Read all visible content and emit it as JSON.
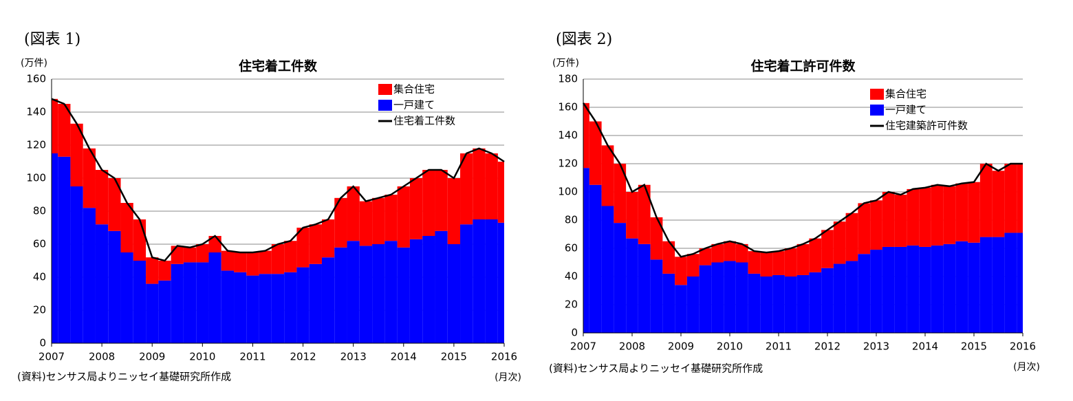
{
  "chart_data": [
    {
      "type": "bar",
      "stacked": true,
      "figure_label": "(図表 1)",
      "title": "住宅着工件数",
      "y_unit": "(万件)",
      "x_unit": "(月次)",
      "note": "(資料)センサス局よりニッセイ基礎研究所作成",
      "categories": [
        "2007",
        null,
        null,
        null,
        "2008",
        null,
        null,
        null,
        "2009",
        null,
        null,
        null,
        "2010",
        null,
        null,
        null,
        "2011",
        null,
        null,
        null,
        "2012",
        null,
        null,
        null,
        "2013",
        null,
        null,
        null,
        "2014",
        null,
        null,
        null,
        "2015",
        null,
        null,
        null,
        "2016"
      ],
      "series": [
        {
          "name": "集合住宅",
          "color": "#ff0000",
          "values": [
            33,
            32,
            38,
            36,
            33,
            32,
            30,
            25,
            16,
            12,
            11,
            9,
            11,
            10,
            12,
            12,
            14,
            14,
            18,
            19,
            24,
            24,
            23,
            30,
            33,
            27,
            28,
            28,
            37,
            37,
            40,
            37,
            40,
            43,
            43,
            40,
            37
          ]
        },
        {
          "name": "一戸建て",
          "color": "#0000ff",
          "values": [
            115,
            113,
            95,
            82,
            72,
            68,
            55,
            50,
            36,
            38,
            48,
            49,
            49,
            55,
            44,
            43,
            41,
            42,
            42,
            43,
            46,
            48,
            52,
            58,
            62,
            59,
            60,
            62,
            58,
            63,
            65,
            68,
            60,
            72,
            75,
            75,
            73
          ]
        },
        {
          "name": "住宅着工件数",
          "type": "line",
          "color": "#000000",
          "values": [
            148,
            145,
            133,
            118,
            105,
            100,
            85,
            75,
            52,
            50,
            59,
            58,
            60,
            65,
            56,
            55,
            55,
            56,
            60,
            62,
            70,
            72,
            75,
            88,
            95,
            86,
            88,
            90,
            95,
            100,
            105,
            105,
            100,
            115,
            118,
            115,
            110
          ]
        }
      ],
      "ylim": [
        0,
        160
      ],
      "yticks": [
        0,
        20,
        40,
        60,
        80,
        100,
        120,
        140,
        160
      ],
      "grid": true,
      "legend": "top-right"
    },
    {
      "type": "bar",
      "stacked": true,
      "figure_label": "(図表 2)",
      "title": "住宅着工許可件数",
      "y_unit": "(万件)",
      "x_unit": "(月次)",
      "note": "(資料)センサス局よりニッセイ基礎研究所作成",
      "categories": [
        "2007",
        null,
        null,
        null,
        "2008",
        null,
        null,
        null,
        "2009",
        null,
        null,
        null,
        "2010",
        null,
        null,
        null,
        "2011",
        null,
        null,
        null,
        "2012",
        null,
        null,
        null,
        "2013",
        null,
        null,
        null,
        "2014",
        null,
        null,
        null,
        "2015",
        null,
        null,
        null,
        "2016"
      ],
      "series": [
        {
          "name": "集合住宅",
          "color": "#ff0000",
          "values": [
            46,
            45,
            43,
            42,
            33,
            42,
            30,
            23,
            20,
            16,
            12,
            13,
            14,
            13,
            16,
            17,
            17,
            20,
            22,
            24,
            27,
            30,
            34,
            36,
            35,
            39,
            37,
            40,
            42,
            43,
            41,
            41,
            43,
            52,
            47,
            49,
            49
          ]
        },
        {
          "name": "一戸建て",
          "color": "#0000ff",
          "values": [
            117,
            105,
            90,
            78,
            67,
            63,
            52,
            42,
            34,
            40,
            48,
            50,
            51,
            50,
            42,
            40,
            41,
            40,
            41,
            43,
            46,
            49,
            51,
            56,
            59,
            61,
            61,
            62,
            61,
            62,
            63,
            65,
            64,
            68,
            68,
            71,
            71
          ]
        },
        {
          "name": "住宅建築許可件数",
          "type": "line",
          "color": "#000000",
          "values": [
            163,
            150,
            133,
            120,
            100,
            105,
            82,
            65,
            54,
            56,
            60,
            63,
            65,
            63,
            58,
            57,
            58,
            60,
            63,
            67,
            73,
            79,
            85,
            92,
            94,
            100,
            98,
            102,
            103,
            105,
            104,
            106,
            107,
            120,
            115,
            120,
            120
          ]
        }
      ],
      "ylim": [
        0,
        180
      ],
      "yticks": [
        0,
        20,
        40,
        60,
        80,
        100,
        120,
        140,
        160,
        180
      ],
      "grid": true,
      "legend": "top-right"
    }
  ]
}
